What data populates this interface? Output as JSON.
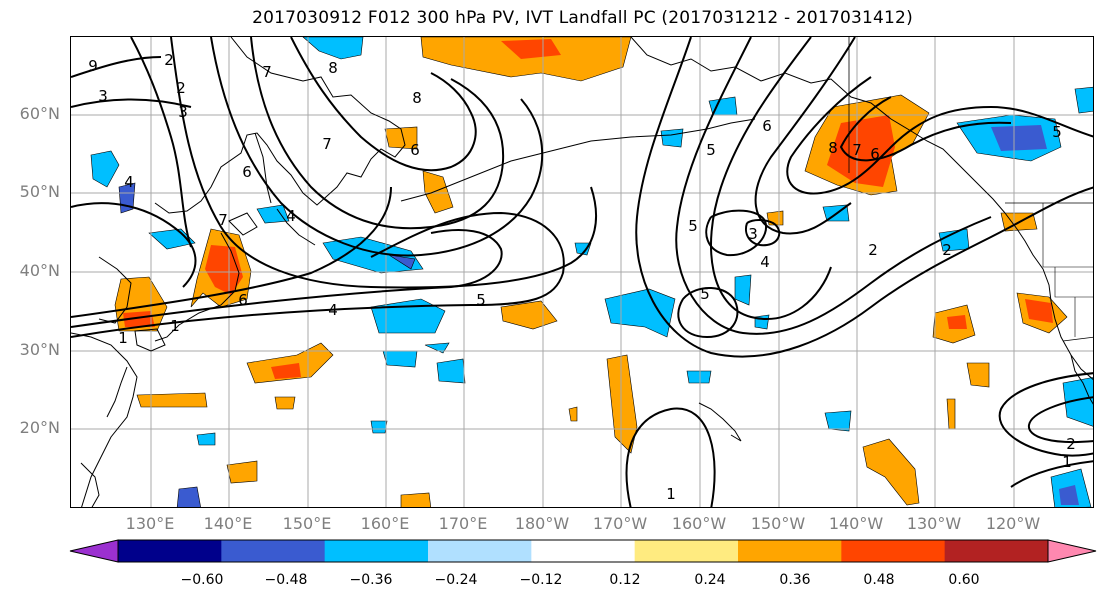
{
  "title": "2017030912 F012 300 hPa PV, IVT Landfall PC (2017031212 - 2017031412)",
  "lat_labels": [
    "60°N",
    "50°N",
    "40°N",
    "30°N",
    "20°N"
  ],
  "lon_labels": [
    "130°E",
    "140°E",
    "150°E",
    "160°E",
    "170°E",
    "180°W",
    "170°W",
    "160°W",
    "150°W",
    "140°W",
    "130°W",
    "120°W"
  ],
  "colorbar": {
    "ticks": [
      "−0.60",
      "−0.48",
      "−0.36",
      "−0.24",
      "−0.12",
      "0.12",
      "0.24",
      "0.36",
      "0.48",
      "0.60"
    ],
    "colors": [
      "#9b30d0",
      "#00008b",
      "#3a5bd0",
      "#00bfff",
      "#b0e0ff",
      "#ffffff",
      "#ffeb80",
      "#ffa500",
      "#ff4500",
      "#b22222",
      "#ff88b0"
    ]
  },
  "contour_labels": [
    "9",
    "7",
    "3",
    "2",
    "4",
    "6",
    "7",
    "7",
    "1",
    "6",
    "4",
    "4",
    "5",
    "1",
    "6",
    "8",
    "8",
    "5",
    "5",
    "2",
    "6",
    "8",
    "7",
    "6",
    "3",
    "4",
    "5",
    "5",
    "2",
    "2",
    "1",
    "1",
    "3",
    "2"
  ],
  "colors": {
    "frame": "#000000",
    "grid": "#a9a9a9",
    "land": "#000000",
    "axis_label": "#7f7f7f"
  }
}
